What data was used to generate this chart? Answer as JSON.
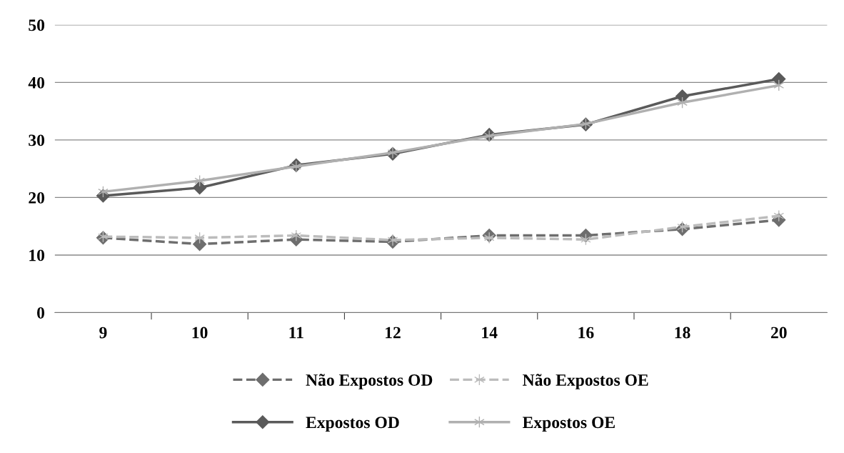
{
  "chart_data": {
    "type": "line",
    "categories": [
      "9",
      "10",
      "11",
      "12",
      "14",
      "16",
      "18",
      "20"
    ],
    "series": [
      {
        "name": "Não Expostos OD",
        "color": "#6e6e6e",
        "line_style": "dashed",
        "marker": "diamond",
        "values": [
          13.0,
          11.9,
          12.7,
          12.3,
          13.4,
          13.4,
          14.5,
          16.1
        ]
      },
      {
        "name": "Não Expostos OE",
        "color": "#bcbcbc",
        "line_style": "dashed",
        "marker": "cross",
        "values": [
          13.2,
          13.0,
          13.4,
          12.6,
          13.0,
          12.7,
          14.9,
          16.8
        ]
      },
      {
        "name": "Expostos OD",
        "color": "#5a5a5a",
        "line_style": "solid",
        "marker": "diamond",
        "values": [
          20.3,
          21.7,
          25.6,
          27.6,
          30.9,
          32.7,
          37.6,
          40.6
        ]
      },
      {
        "name": "Expostos OE",
        "color": "#b0b0b0",
        "line_style": "solid",
        "marker": "cross",
        "values": [
          21.0,
          22.9,
          25.4,
          27.8,
          30.7,
          32.8,
          36.5,
          39.5
        ]
      }
    ],
    "ylim": [
      0,
      50
    ],
    "yticks": [
      0,
      10,
      20,
      30,
      40,
      50
    ],
    "grid": "y",
    "legend": "bottom"
  }
}
